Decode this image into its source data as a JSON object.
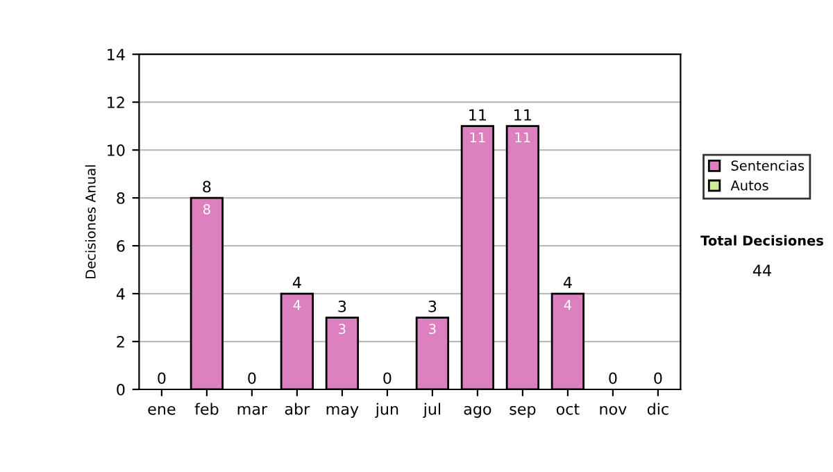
{
  "chart_data": {
    "type": "bar",
    "ylabel": "Decisiones Anual",
    "categories": [
      "ene",
      "feb",
      "mar",
      "abr",
      "may",
      "jun",
      "jul",
      "ago",
      "sep",
      "oct",
      "nov",
      "dic"
    ],
    "stacked": true,
    "series": [
      {
        "name": "Sentencias",
        "color": "#dd80bf",
        "values": [
          0,
          8,
          0,
          4,
          3,
          0,
          3,
          11,
          11,
          4,
          0,
          0
        ],
        "value_labels": [
          null,
          "8",
          null,
          "4",
          "3",
          null,
          "3",
          "11",
          "11",
          "4",
          null,
          null
        ]
      },
      {
        "name": "Autos",
        "color": "#ccee99",
        "values": [
          0,
          0,
          0,
          0,
          0,
          0,
          0,
          0,
          0,
          0,
          0,
          0
        ]
      }
    ],
    "totals": [
      "0",
      "8",
      "0",
      "4",
      "3",
      "0",
      "3",
      "11",
      "11",
      "4",
      "0",
      "0"
    ],
    "ylim": [
      0,
      14
    ],
    "yticks": [
      0,
      2,
      4,
      6,
      8,
      10,
      12,
      14
    ],
    "grid": "y",
    "legend": "right",
    "annotations": [
      "Total Decisiones",
      "44"
    ]
  }
}
